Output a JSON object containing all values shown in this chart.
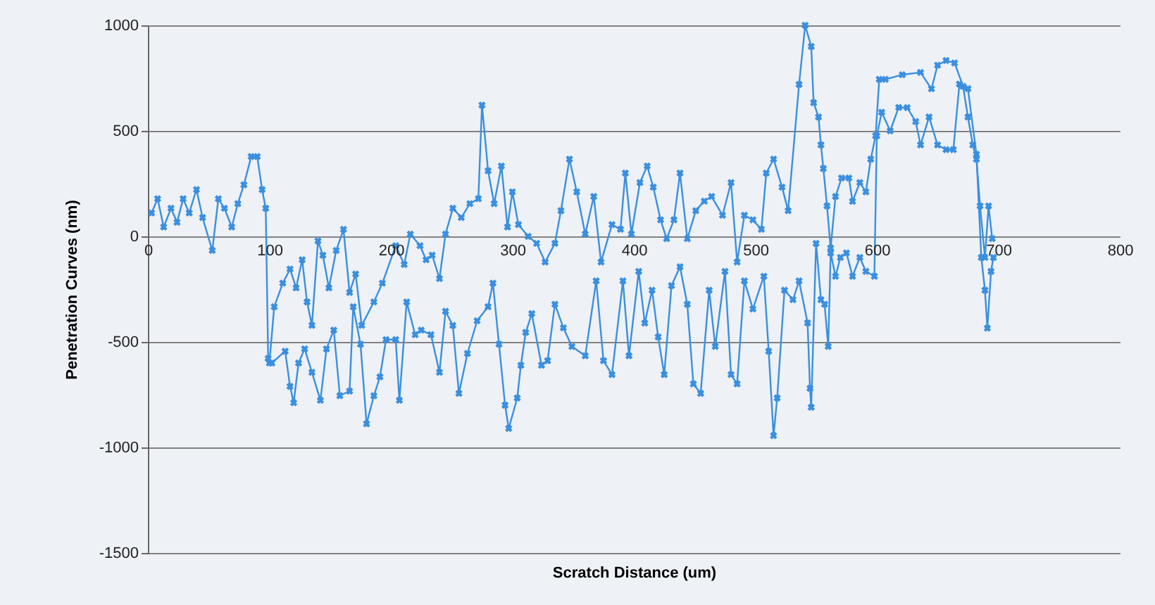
{
  "chart_data": {
    "type": "line",
    "xlabel": "Scratch Distance (um)",
    "ylabel": "Penetration Curves (nm)",
    "xlim": [
      0,
      800
    ],
    "xticks": [
      0,
      100,
      200,
      300,
      400,
      500,
      600,
      700,
      800
    ],
    "ylim": [
      -1500,
      1000
    ],
    "yticks": [
      -1500,
      -1000,
      -500,
      0,
      500,
      1000
    ],
    "grid": "y",
    "marker": "cross",
    "series": [
      {
        "color": "#3a8fe0",
        "x": [
          3,
          8,
          13,
          19,
          24,
          29,
          34,
          40,
          45,
          53,
          58,
          63,
          69,
          74,
          79,
          85,
          90,
          94,
          97,
          99,
          100,
          104,
          111,
          117,
          122,
          127,
          131,
          135,
          140,
          144,
          149,
          155,
          161,
          166,
          171,
          176,
          186,
          193,
          204,
          211,
          216,
          224,
          229,
          234,
          240,
          245,
          251,
          258,
          265,
          272,
          275,
          280,
          285,
          291,
          296,
          300,
          305,
          313,
          320,
          327,
          335,
          340,
          347,
          353,
          360,
          367,
          373,
          382,
          389,
          393,
          398,
          405,
          411,
          416,
          422,
          427,
          433,
          438,
          444,
          451,
          458,
          464,
          473,
          480,
          485,
          491,
          498,
          505,
          509,
          515,
          522,
          527,
          536,
          541,
          546,
          548,
          552,
          554,
          556,
          559,
          562,
          566,
          571,
          577,
          580,
          586,
          591,
          595,
          599,
          602,
          607,
          621,
          636,
          645,
          650,
          657,
          664,
          671,
          675,
          679,
          682,
          685,
          689,
          692,
          695
        ],
        "values": [
          111,
          178,
          44,
          133,
          67,
          178,
          111,
          222,
          89,
          -67,
          178,
          133,
          44,
          155,
          244,
          378,
          378,
          222,
          133,
          -578,
          -600,
          -333,
          -222,
          -155,
          -244,
          -111,
          -311,
          -422,
          -22,
          -89,
          -244,
          -67,
          33,
          -266,
          -178,
          -422,
          -311,
          -222,
          -44,
          -133,
          11,
          -44,
          -111,
          -89,
          -200,
          11,
          133,
          89,
          155,
          178,
          622,
          311,
          155,
          333,
          44,
          211,
          56,
          0,
          -33,
          -122,
          -33,
          122,
          366,
          211,
          11,
          189,
          -122,
          56,
          33,
          300,
          11,
          255,
          333,
          233,
          78,
          -11,
          78,
          300,
          -11,
          122,
          167,
          189,
          100,
          255,
          -122,
          100,
          78,
          33,
          300,
          366,
          233,
          122,
          720,
          1000,
          900,
          633,
          566,
          433,
          322,
          144,
          -55,
          189,
          277,
          277,
          166,
          255,
          211,
          366,
          477,
          744,
          744,
          766,
          777,
          699,
          811,
          833,
          822,
          711,
          566,
          433,
          366,
          144,
          -100,
          144,
          -11
        ]
      },
      {
        "color": "#3a8fe0",
        "x": [
          102,
          113,
          117,
          120,
          124,
          129,
          135,
          142,
          147,
          153,
          158,
          166,
          169,
          175,
          180,
          186,
          191,
          196,
          204,
          207,
          213,
          220,
          225,
          233,
          240,
          245,
          251,
          256,
          263,
          271,
          280,
          284,
          289,
          294,
          297,
          304,
          307,
          311,
          316,
          324,
          329,
          335,
          342,
          349,
          360,
          369,
          375,
          382,
          391,
          396,
          404,
          409,
          415,
          420,
          425,
          431,
          438,
          444,
          449,
          455,
          462,
          467,
          475,
          480,
          485,
          491,
          498,
          507,
          511,
          515,
          518,
          524,
          531,
          536,
          543,
          545,
          546,
          550,
          554,
          557,
          560,
          562,
          566,
          570,
          575,
          580,
          586,
          591,
          598,
          600,
          604,
          611,
          618,
          625,
          632,
          636,
          643,
          650,
          657,
          663,
          668,
          675,
          682,
          686,
          689,
          691,
          694,
          696
        ],
        "values": [
          -600,
          -544,
          -711,
          -788,
          -600,
          -533,
          -644,
          -777,
          -533,
          -444,
          -755,
          -733,
          -333,
          -511,
          -888,
          -755,
          -666,
          -489,
          -489,
          -777,
          -311,
          -466,
          -444,
          -466,
          -644,
          -355,
          -422,
          -744,
          -555,
          -400,
          -333,
          -222,
          -511,
          -800,
          -910,
          -766,
          -611,
          -455,
          -366,
          -611,
          -589,
          -322,
          -433,
          -522,
          -566,
          -211,
          -589,
          -655,
          -211,
          -566,
          -166,
          -411,
          -255,
          -477,
          -655,
          -233,
          -144,
          -322,
          -699,
          -744,
          -255,
          -522,
          -166,
          -655,
          -699,
          -211,
          -344,
          -189,
          -544,
          -944,
          -766,
          -255,
          -300,
          -211,
          -410,
          -720,
          -810,
          -33,
          -300,
          -322,
          -522,
          -78,
          -189,
          -100,
          -78,
          -189,
          -100,
          -166,
          -189,
          477,
          588,
          500,
          611,
          610,
          544,
          433,
          566,
          433,
          411,
          411,
          722,
          700,
          389,
          -100,
          -255,
          -435,
          -166,
          -100
        ]
      }
    ]
  }
}
